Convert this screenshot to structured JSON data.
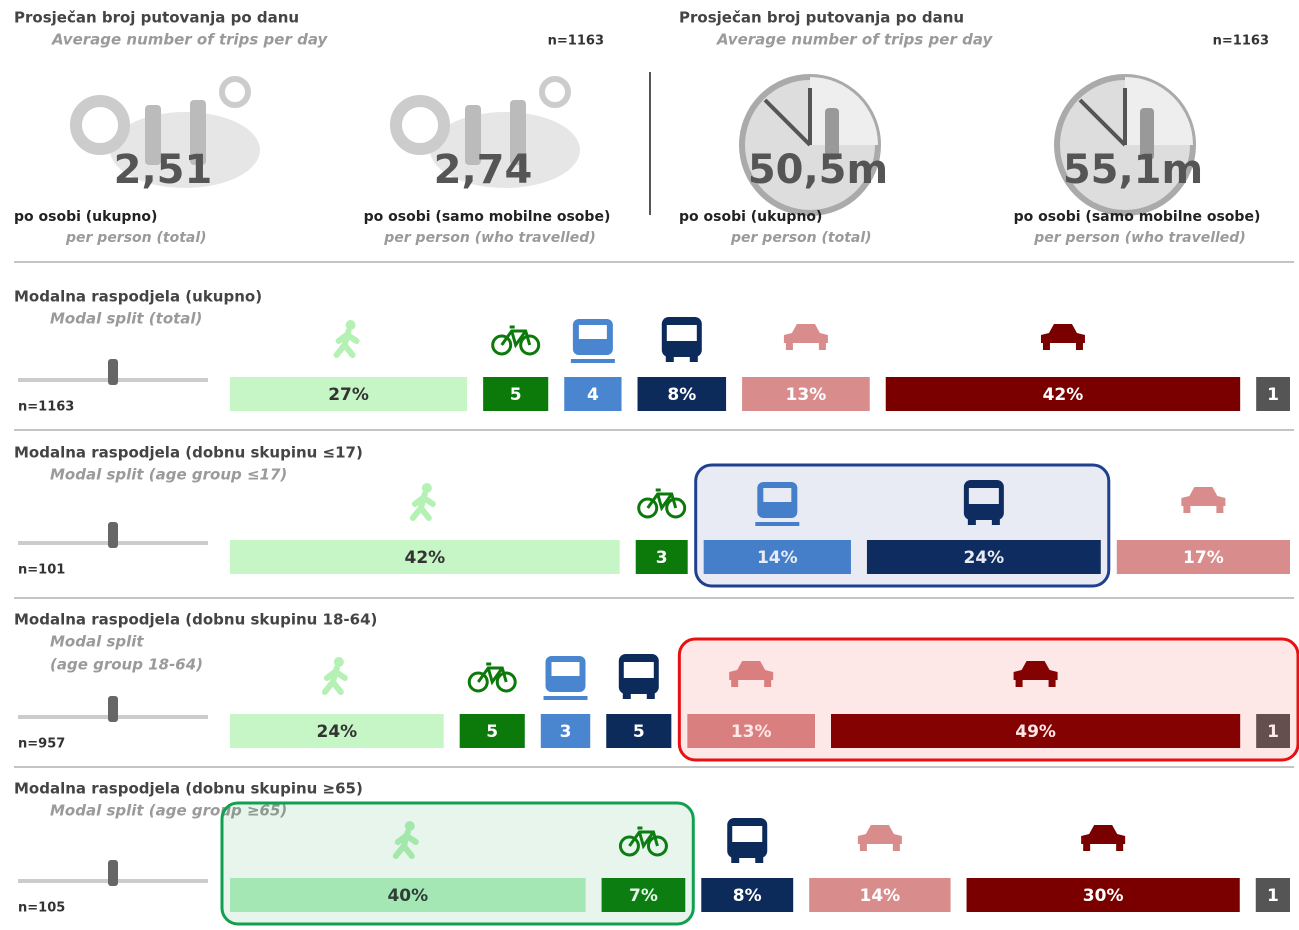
{
  "header": [
    {
      "title": "Prosječan broj putovanja po danu",
      "subtitle": "Average number of trips per day",
      "n": "n=1163",
      "stats": [
        {
          "value": "2,51",
          "label": "po osobi (ukupno)",
          "sublabel": "per person (total)"
        },
        {
          "value": "2,74",
          "label": "po osobi (samo mobilne osobe)",
          "sublabel": "per person (who travelled)"
        }
      ]
    },
    {
      "title": "Prosječan broj putovanja po danu",
      "subtitle": "Average number of trips per day",
      "n": "n=1163",
      "stats": [
        {
          "value": "50,5m",
          "label": "po osobi (ukupno)",
          "sublabel": "per person (total)"
        },
        {
          "value": "55,1m",
          "label": "po osobi (samo mobilne osobe)",
          "sublabel": "per person (who travelled)"
        }
      ]
    }
  ],
  "chart_data": [
    {
      "type": "stacked-bar",
      "title": "Modalna raspodjela (ukupno)",
      "subtitle": [
        "Modal split (total)"
      ],
      "n": "n=1163",
      "modes": [
        "walk",
        "bike",
        "train",
        "bus",
        "car-passenger",
        "car-driver",
        "other"
      ],
      "values": [
        27,
        5,
        4,
        8,
        13,
        42,
        1
      ],
      "value_labels": [
        "27%",
        "5",
        "4",
        "8%",
        "13%",
        "42%",
        "1"
      ],
      "colors": [
        "#c6f5c6",
        "#0b7a0b",
        "#4a86d0",
        "#0d2b5a",
        "#d98c8c",
        "#7a0000",
        "#555555"
      ]
    },
    {
      "type": "stacked-bar",
      "title": "Modalna raspodjela (dobnu skupinu ≤17)",
      "subtitle": [
        "Modal split (age group ≤17)"
      ],
      "n": "n=101",
      "modes": [
        "walk",
        "bike",
        "train",
        "bus",
        "car-passenger"
      ],
      "values": [
        42,
        3,
        14,
        24,
        17
      ],
      "value_labels": [
        "42%",
        "3",
        "14%",
        "24%",
        "17%"
      ],
      "colors": [
        "#c6f5c6",
        "#0b7a0b",
        "#4a86d0",
        "#0d2b5a",
        "#d98c8c"
      ],
      "highlight": {
        "color": "#1f3f8f",
        "from": 2,
        "to": 3
      }
    },
    {
      "type": "stacked-bar",
      "title": "Modalna raspodjela (dobnu skupinu 18-64)",
      "subtitle": [
        "Modal split",
        "(age group 18-64)"
      ],
      "n": "n=957",
      "modes": [
        "walk",
        "bike",
        "train",
        "bus",
        "car-passenger",
        "car-driver",
        "other"
      ],
      "values": [
        24,
        5,
        3,
        5,
        13,
        49,
        1
      ],
      "value_labels": [
        "24%",
        "5",
        "3",
        "5",
        "13%",
        "49%",
        "1"
      ],
      "colors": [
        "#c6f5c6",
        "#0b7a0b",
        "#4a86d0",
        "#0d2b5a",
        "#d98c8c",
        "#7a0000",
        "#555555"
      ],
      "highlight": {
        "color": "#e81010",
        "from": 4,
        "to": 6
      }
    },
    {
      "type": "stacked-bar",
      "title": "Modalna raspodjela (dobnu skupinu ≥65)",
      "subtitle": [
        "Modal split (age group ≥65)"
      ],
      "n": "n=105",
      "modes": [
        "walk",
        "bike",
        "bus",
        "car-passenger",
        "car-driver",
        "other"
      ],
      "values": [
        40,
        7,
        8,
        14,
        30,
        1
      ],
      "value_labels": [
        "40%",
        "7%",
        "8%",
        "14%",
        "30%",
        "1"
      ],
      "colors": [
        "#b5f0c0",
        "#0b7a0b",
        "#0d2b5a",
        "#d98c8c",
        "#7a0000",
        "#555555"
      ],
      "highlight": {
        "color": "#10a050",
        "from": 0,
        "to": 1
      }
    }
  ]
}
